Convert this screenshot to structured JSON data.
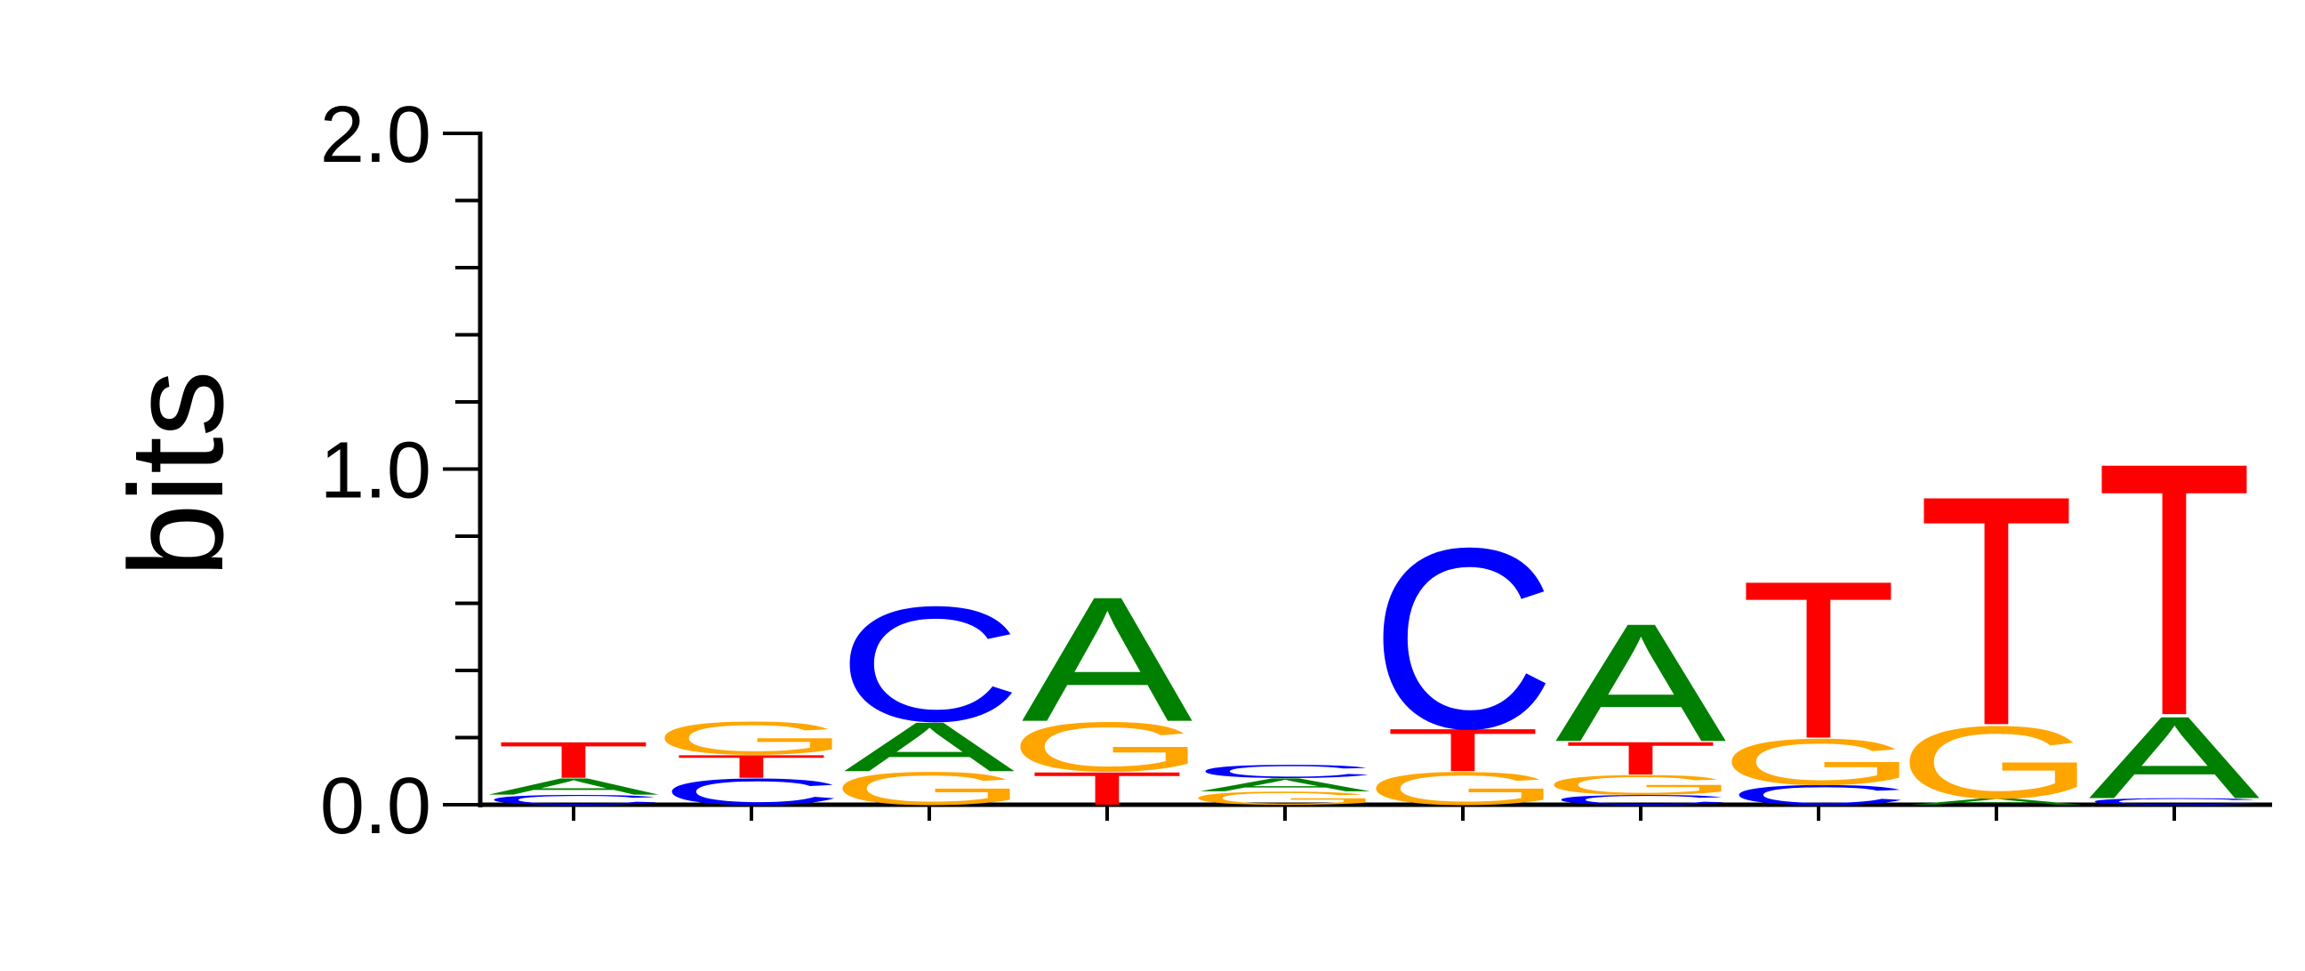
{
  "chart_data": {
    "type": "sequence-logo",
    "ylabel": "bits",
    "ylim": [
      0,
      2.0
    ],
    "y_ticks": [
      "0.0",
      "1.0",
      "2.0"
    ],
    "colors": {
      "A": "#008000",
      "C": "#0000ff",
      "G": "#ffa500",
      "T": "#ff0000"
    },
    "positions": [
      {
        "position": 1,
        "letters": [
          {
            "base": "C",
            "bits": 0.03
          },
          {
            "base": "A",
            "bits": 0.05
          },
          {
            "base": "T",
            "bits": 0.11
          }
        ]
      },
      {
        "position": 2,
        "letters": [
          {
            "base": "C",
            "bits": 0.08
          },
          {
            "base": "T",
            "bits": 0.07
          },
          {
            "base": "G",
            "bits": 0.1
          }
        ]
      },
      {
        "position": 3,
        "letters": [
          {
            "base": "G",
            "bits": 0.1
          },
          {
            "base": "A",
            "bits": 0.15
          },
          {
            "base": "C",
            "bits": 0.35
          }
        ]
      },
      {
        "position": 4,
        "letters": [
          {
            "base": "T",
            "bits": 0.1
          },
          {
            "base": "G",
            "bits": 0.15
          },
          {
            "base": "A",
            "bits": 0.38
          }
        ]
      },
      {
        "position": 5,
        "letters": [
          {
            "base": "G",
            "bits": 0.04
          },
          {
            "base": "A",
            "bits": 0.04
          },
          {
            "base": "C",
            "bits": 0.04
          }
        ]
      },
      {
        "position": 6,
        "letters": [
          {
            "base": "G",
            "bits": 0.1
          },
          {
            "base": "T",
            "bits": 0.13
          },
          {
            "base": "C",
            "bits": 0.55
          }
        ]
      },
      {
        "position": 7,
        "letters": [
          {
            "base": "C",
            "bits": 0.03
          },
          {
            "base": "G",
            "bits": 0.06
          },
          {
            "base": "T",
            "bits": 0.1
          },
          {
            "base": "A",
            "bits": 0.36
          }
        ]
      },
      {
        "position": 8,
        "letters": [
          {
            "base": "C",
            "bits": 0.06
          },
          {
            "base": "G",
            "bits": 0.14
          },
          {
            "base": "T",
            "bits": 0.48
          }
        ]
      },
      {
        "position": 9,
        "letters": [
          {
            "base": "A",
            "bits": 0.02
          },
          {
            "base": "G",
            "bits": 0.22
          },
          {
            "base": "T",
            "bits": 0.7
          }
        ]
      },
      {
        "position": 10,
        "letters": [
          {
            "base": "C",
            "bits": 0.02
          },
          {
            "base": "A",
            "bits": 0.25
          },
          {
            "base": "T",
            "bits": 0.77
          }
        ]
      }
    ]
  }
}
